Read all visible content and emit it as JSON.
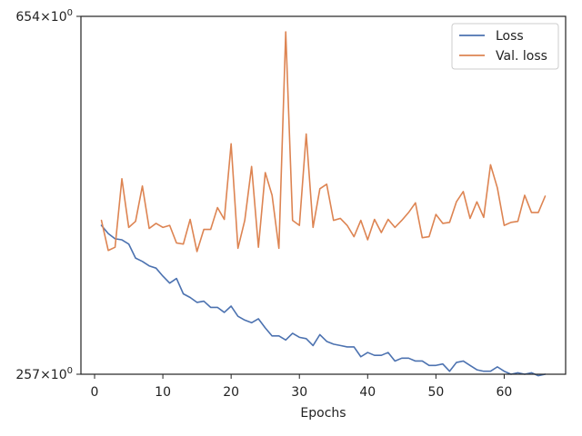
{
  "chart_data": {
    "type": "line",
    "title": "",
    "xlabel": "Epochs",
    "ylabel": "",
    "yscale": "log",
    "xlim": [
      -2,
      69
    ],
    "ylim": [
      257,
      654
    ],
    "x_ticks": [
      0,
      10,
      20,
      30,
      40,
      50,
      60
    ],
    "x_tick_labels": [
      "0",
      "10",
      "20",
      "30",
      "40",
      "50",
      "60"
    ],
    "y_ticks": [
      257,
      654
    ],
    "y_tick_labels": [
      {
        "mantissa": "257",
        "base": "10",
        "exponent": "0"
      },
      {
        "mantissa": "654",
        "base": "10",
        "exponent": "0"
      }
    ],
    "grid": false,
    "legend_position": "top-right",
    "x": [
      1,
      2,
      3,
      4,
      5,
      6,
      7,
      8,
      9,
      10,
      11,
      12,
      13,
      14,
      15,
      16,
      17,
      18,
      19,
      20,
      21,
      22,
      23,
      24,
      25,
      26,
      27,
      28,
      29,
      30,
      31,
      32,
      33,
      34,
      35,
      36,
      37,
      38,
      39,
      40,
      41,
      42,
      43,
      44,
      45,
      46,
      47,
      48,
      49,
      50,
      51,
      52,
      53,
      54,
      55,
      56,
      57,
      58,
      59,
      60,
      61,
      62,
      63,
      64,
      65,
      66
    ],
    "series": [
      {
        "name": "Loss",
        "color": "#4c72b0",
        "values": [
          379,
          371,
          366,
          365,
          361,
          348,
          345,
          341,
          339,
          332,
          326,
          330,
          317,
          314,
          310,
          311,
          306,
          306,
          302,
          307,
          299,
          296,
          294,
          297,
          290,
          284,
          284,
          281,
          286,
          283,
          282,
          277,
          285,
          280,
          278,
          277,
          276,
          276,
          269,
          272,
          270,
          270,
          272,
          266,
          268,
          268,
          266,
          266,
          263,
          263,
          264,
          259,
          265,
          266,
          263,
          260,
          259,
          259,
          262,
          259,
          257,
          258,
          257,
          258,
          256,
          257
        ]
      },
      {
        "name": "Val. loss",
        "color": "#dd8452",
        "values": [
          384,
          355,
          358,
          428,
          377,
          383,
          420,
          376,
          381,
          377,
          379,
          362,
          361,
          385,
          354,
          375,
          375,
          397,
          385,
          469,
          357,
          384,
          442,
          358,
          435,
          410,
          357,
          628,
          384,
          379,
          481,
          377,
          417,
          422,
          384,
          386,
          379,
          368,
          384,
          365,
          385,
          372,
          385,
          377,
          384,
          392,
          402,
          367,
          368,
          390,
          381,
          382,
          403,
          414,
          386,
          403,
          387,
          444,
          418,
          379,
          382,
          383,
          410,
          392,
          392,
          409
        ]
      }
    ]
  }
}
